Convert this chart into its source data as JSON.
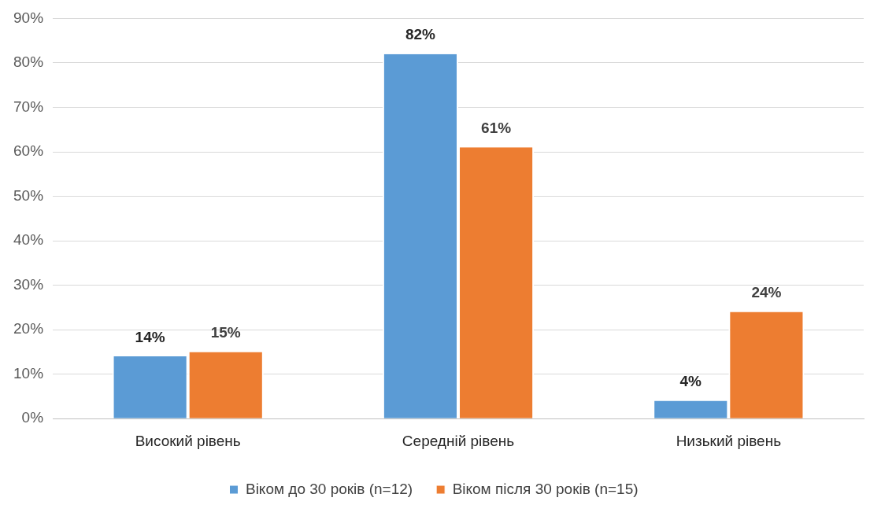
{
  "chart_data": {
    "type": "bar",
    "categories": [
      "Високий рівень",
      "Середній рівень",
      "Низький рівень"
    ],
    "series": [
      {
        "name": "Віком до 30 років (n=12)",
        "color": "#5b9bd5",
        "values": [
          14,
          82,
          4
        ],
        "value_labels": [
          "14%",
          "82%",
          "4%"
        ]
      },
      {
        "name": "Віком після 30 років (n=15)",
        "color": "#ed7d31",
        "values": [
          15,
          61,
          24
        ],
        "value_labels": [
          "15%",
          "61%",
          "24%"
        ]
      }
    ],
    "ylim": [
      0,
      90
    ],
    "yticks": [
      {
        "value": 0,
        "label": "0%"
      },
      {
        "value": 10,
        "label": "10%"
      },
      {
        "value": 20,
        "label": "20%"
      },
      {
        "value": 30,
        "label": "30%"
      },
      {
        "value": 40,
        "label": "40%"
      },
      {
        "value": 50,
        "label": "50%"
      },
      {
        "value": 60,
        "label": "60%"
      },
      {
        "value": 70,
        "label": "70%"
      },
      {
        "value": 80,
        "label": "80%"
      },
      {
        "value": 90,
        "label": "90%"
      }
    ],
    "grid": "y",
    "legend": "bottom"
  }
}
